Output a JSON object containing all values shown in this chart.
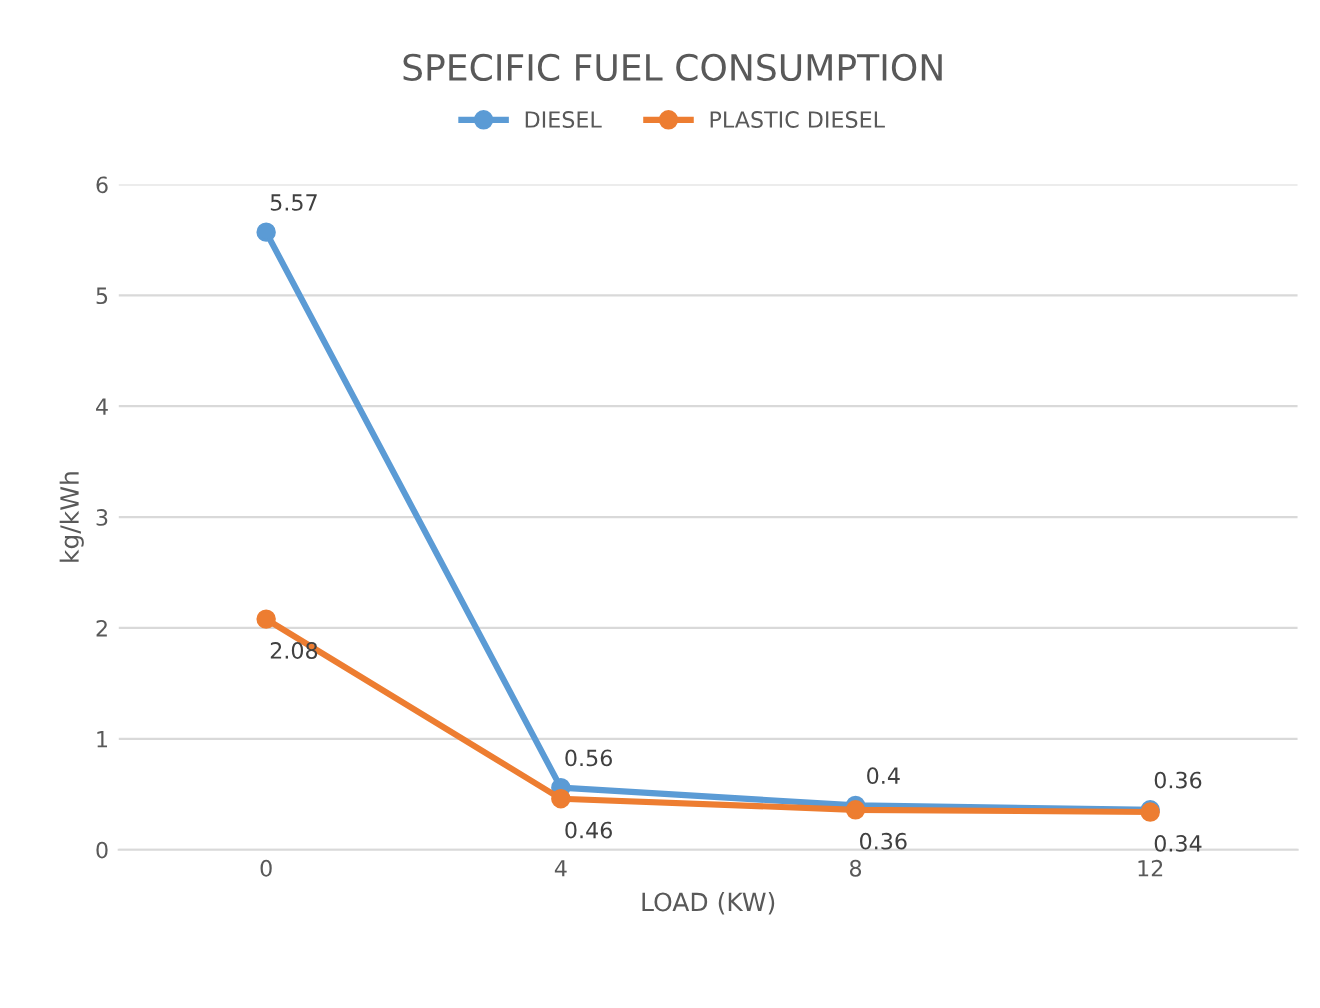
{
  "chart_data": {
    "type": "line",
    "title": "SPECIFIC FUEL CONSUMPTION",
    "xlabel": "LOAD (KW)",
    "ylabel": "kg/kWh",
    "categories": [
      "0",
      "4",
      "8",
      "12"
    ],
    "series": [
      {
        "name": "DIESEL",
        "color": "#5b9bd5",
        "values": [
          5.57,
          0.56,
          0.4,
          0.36
        ]
      },
      {
        "name": "PLASTIC DIESEL",
        "color": "#ed7d31",
        "values": [
          2.08,
          0.46,
          0.36,
          0.34
        ]
      }
    ],
    "ylim": [
      0,
      6
    ],
    "yticks": [
      0,
      1,
      2,
      3,
      4,
      5,
      6
    ],
    "grid": "y",
    "legend": "top",
    "marker": "circle",
    "line_style": "solid",
    "data_labels": true
  }
}
